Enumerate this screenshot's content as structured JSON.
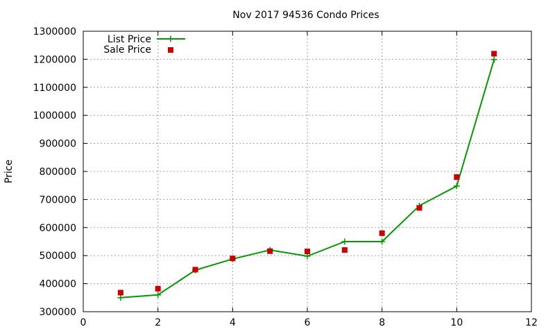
{
  "chart_data": {
    "type": "line",
    "title": "Nov 2017 94536 Condo Prices",
    "xlabel": "",
    "ylabel": "Price",
    "xlim": [
      0,
      12
    ],
    "ylim": [
      300000,
      1300000
    ],
    "xticks": [
      0,
      2,
      4,
      6,
      8,
      10,
      12
    ],
    "yticks": [
      300000,
      400000,
      500000,
      600000,
      700000,
      800000,
      900000,
      1000000,
      1100000,
      1200000,
      1300000
    ],
    "grid": true,
    "legend_position": "top-left",
    "series": [
      {
        "name": "List Price",
        "style": "line-with-plus-markers",
        "color": "#009900",
        "x": [
          1,
          2,
          3,
          4,
          5,
          6,
          7,
          8,
          9,
          10,
          11
        ],
        "values": [
          350000,
          360000,
          448000,
          488000,
          520000,
          498000,
          550000,
          550000,
          678000,
          748000,
          1199000
        ]
      },
      {
        "name": "Sale Price",
        "style": "square-markers",
        "color": "#cc0000",
        "x": [
          1,
          2,
          3,
          4,
          5,
          6,
          7,
          8,
          9,
          10,
          11
        ],
        "values": [
          368000,
          382000,
          450000,
          490000,
          516000,
          515000,
          520000,
          580000,
          670000,
          780000,
          1220000
        ]
      }
    ]
  }
}
